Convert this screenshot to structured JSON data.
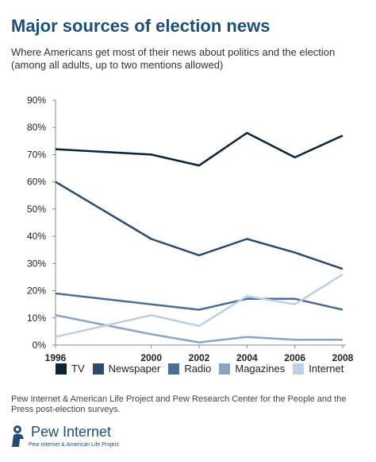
{
  "header": {
    "title": "Major sources of election news",
    "subtitle": "Where Americans get most of their news about politics and the election (among all adults, up to two mentions allowed)"
  },
  "chart_data": {
    "type": "line",
    "title": "Major sources of election news",
    "x": [
      "1996",
      "2000",
      "2002",
      "2004",
      "2006",
      "2008"
    ],
    "yticks": [
      "0%",
      "10%",
      "20%",
      "30%",
      "40%",
      "50%",
      "60%",
      "70%",
      "80%",
      "90%"
    ],
    "ylim": [
      0,
      90
    ],
    "grid": false,
    "legend_position": "bottom",
    "series": [
      {
        "name": "TV",
        "color": "#0d2436",
        "values": [
          72,
          70,
          66,
          78,
          69,
          77
        ]
      },
      {
        "name": "Newspaper",
        "color": "#2c4a6e",
        "values": [
          60,
          39,
          33,
          39,
          34,
          28
        ]
      },
      {
        "name": "Radio",
        "color": "#4a6e96",
        "values": [
          19,
          15,
          13,
          17,
          17,
          13
        ]
      },
      {
        "name": "Magazines",
        "color": "#8aa4c4",
        "values": [
          11,
          4,
          1,
          3,
          2,
          2
        ]
      },
      {
        "name": "Internet",
        "color": "#bccfe3",
        "values": [
          3,
          11,
          7,
          18,
          15,
          26
        ]
      }
    ]
  },
  "footer": {
    "source": "Pew Internet & American Life Project and Pew Research Center for the People and the Press post-election surveys.",
    "logo_text": "Pew Internet",
    "logo_subtext": "Pew Internet & American Life Project"
  }
}
